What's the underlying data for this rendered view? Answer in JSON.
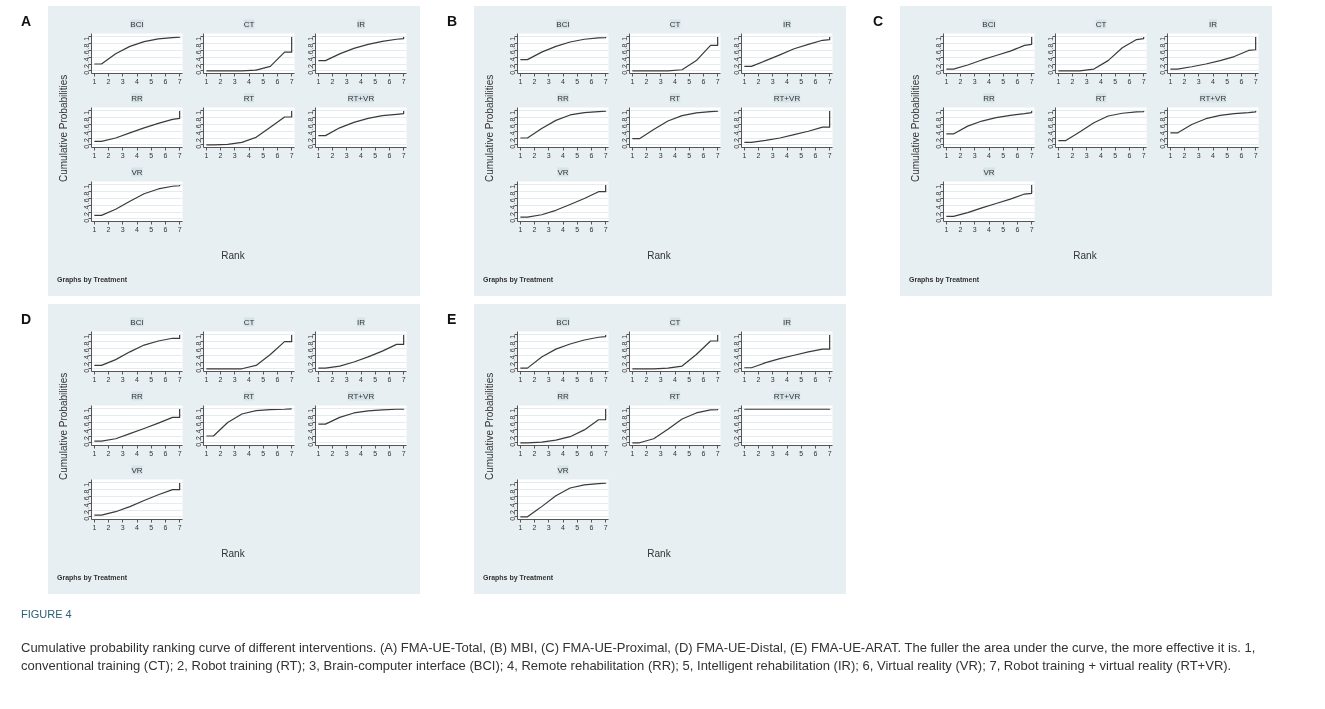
{
  "chart_data": [
    {
      "type": "other",
      "title": "A",
      "xlabel": "Rank",
      "ylabel": "Cumulative Probabilities",
      "annotations": [
        "Graphs by Treatment"
      ]
    },
    {
      "type": "line",
      "title": "BCI",
      "x": [
        1,
        1.5,
        2.5,
        3.5,
        4.5,
        5.5,
        6.5,
        7,
        7
      ],
      "values": [
        0.2,
        0.2,
        0.5,
        0.72,
        0.86,
        0.94,
        0.98,
        0.99,
        1
      ],
      "color": "#3a3a3a",
      "xlim": [
        0.8,
        7.2
      ],
      "xticks": [
        1,
        2,
        3,
        4,
        5,
        6,
        7
      ],
      "ylim": [
        -0.08,
        1.1
      ],
      "yticks": [
        {
          "value": 0,
          "label": "0"
        },
        {
          "value": 0.2,
          "label": ".2"
        },
        {
          "value": 0.4,
          "label": ".4"
        },
        {
          "value": 0.6,
          "label": ".6"
        },
        {
          "value": 0.8,
          "label": ".8"
        },
        {
          "value": 1,
          "label": "1"
        }
      ],
      "grid": "y"
    },
    {
      "type": "line",
      "title": "CT",
      "x": [
        1,
        1.5,
        2.5,
        3.5,
        4.5,
        5.5,
        6.5,
        7,
        7
      ],
      "values": [
        0,
        0,
        0,
        0,
        0.02,
        0.13,
        0.55,
        0.55,
        1
      ],
      "color": "#3a3a3a",
      "xlim": [
        0.8,
        7.2
      ],
      "xticks": [
        1,
        2,
        3,
        4,
        5,
        6,
        7
      ],
      "ylim": [
        -0.08,
        1.1
      ],
      "yticks": [
        {
          "value": 0,
          "label": "0"
        },
        {
          "value": 0.2,
          "label": ".2"
        },
        {
          "value": 0.4,
          "label": ".4"
        },
        {
          "value": 0.6,
          "label": ".6"
        },
        {
          "value": 0.8,
          "label": ".8"
        },
        {
          "value": 1,
          "label": "1"
        }
      ],
      "grid": "y"
    },
    {
      "type": "line",
      "title": "IR",
      "x": [
        1,
        1.5,
        2.5,
        3.5,
        4.5,
        5.5,
        6.5,
        7,
        7
      ],
      "values": [
        0.3,
        0.3,
        0.5,
        0.66,
        0.78,
        0.87,
        0.93,
        0.95,
        1
      ],
      "color": "#3a3a3a",
      "xlim": [
        0.8,
        7.2
      ],
      "xticks": [
        1,
        2,
        3,
        4,
        5,
        6,
        7
      ],
      "ylim": [
        -0.08,
        1.1
      ],
      "yticks": [
        {
          "value": 0,
          "label": "0"
        },
        {
          "value": 0.2,
          "label": ".2"
        },
        {
          "value": 0.4,
          "label": ".4"
        },
        {
          "value": 0.6,
          "label": ".6"
        },
        {
          "value": 0.8,
          "label": ".8"
        },
        {
          "value": 1,
          "label": "1"
        }
      ],
      "grid": "y"
    },
    {
      "type": "line",
      "title": "RR",
      "x": [
        1,
        1.5,
        2.5,
        3.5,
        4.5,
        5.5,
        6.5,
        7,
        7
      ],
      "values": [
        0.1,
        0.1,
        0.2,
        0.35,
        0.5,
        0.63,
        0.75,
        0.78,
        1
      ],
      "color": "#3a3a3a",
      "xlim": [
        0.8,
        7.2
      ],
      "xticks": [
        1,
        2,
        3,
        4,
        5,
        6,
        7
      ],
      "ylim": [
        -0.08,
        1.1
      ],
      "yticks": [
        {
          "value": 0,
          "label": "0"
        },
        {
          "value": 0.2,
          "label": ".2"
        },
        {
          "value": 0.4,
          "label": ".4"
        },
        {
          "value": 0.6,
          "label": ".6"
        },
        {
          "value": 0.8,
          "label": ".8"
        },
        {
          "value": 1,
          "label": "1"
        }
      ],
      "grid": "y"
    },
    {
      "type": "line",
      "title": "RT",
      "x": [
        1,
        1.5,
        2.5,
        3.5,
        4.5,
        5.5,
        6.5,
        7,
        7
      ],
      "values": [
        0,
        0,
        0.01,
        0.07,
        0.22,
        0.52,
        0.82,
        0.82,
        1
      ],
      "color": "#3a3a3a",
      "xlim": [
        0.8,
        7.2
      ],
      "xticks": [
        1,
        2,
        3,
        4,
        5,
        6,
        7
      ],
      "ylim": [
        -0.08,
        1.1
      ],
      "yticks": [
        {
          "value": 0,
          "label": "0"
        },
        {
          "value": 0.2,
          "label": ".2"
        },
        {
          "value": 0.4,
          "label": ".4"
        },
        {
          "value": 0.6,
          "label": ".6"
        },
        {
          "value": 0.8,
          "label": ".8"
        },
        {
          "value": 1,
          "label": "1"
        }
      ],
      "grid": "y"
    },
    {
      "type": "line",
      "title": "RT+VR",
      "x": [
        1,
        1.5,
        2.5,
        3.5,
        4.5,
        5.5,
        6.5,
        7,
        7
      ],
      "values": [
        0.27,
        0.27,
        0.5,
        0.66,
        0.78,
        0.86,
        0.9,
        0.92,
        1
      ],
      "color": "#3a3a3a",
      "xlim": [
        0.8,
        7.2
      ],
      "xticks": [
        1,
        2,
        3,
        4,
        5,
        6,
        7
      ],
      "ylim": [
        -0.08,
        1.1
      ],
      "yticks": [
        {
          "value": 0,
          "label": "0"
        },
        {
          "value": 0.2,
          "label": ".2"
        },
        {
          "value": 0.4,
          "label": ".4"
        },
        {
          "value": 0.6,
          "label": ".6"
        },
        {
          "value": 0.8,
          "label": ".8"
        },
        {
          "value": 1,
          "label": "1"
        }
      ],
      "grid": "y"
    },
    {
      "type": "line",
      "title": "VR",
      "x": [
        1,
        1.5,
        2.5,
        3.5,
        4.5,
        5.5,
        6.5,
        7,
        7
      ],
      "values": [
        0.1,
        0.1,
        0.28,
        0.52,
        0.74,
        0.88,
        0.96,
        0.98,
        1
      ],
      "color": "#3a3a3a",
      "xlim": [
        0.8,
        7.2
      ],
      "xticks": [
        1,
        2,
        3,
        4,
        5,
        6,
        7
      ],
      "ylim": [
        -0.08,
        1.1
      ],
      "yticks": [
        {
          "value": 0,
          "label": "0"
        },
        {
          "value": 0.2,
          "label": ".2"
        },
        {
          "value": 0.4,
          "label": ".4"
        },
        {
          "value": 0.6,
          "label": ".6"
        },
        {
          "value": 0.8,
          "label": ".8"
        },
        {
          "value": 1,
          "label": "1"
        }
      ],
      "grid": "y"
    },
    {
      "type": "other",
      "title": "B",
      "xlabel": "Rank",
      "ylabel": "Cumulative Probabilities",
      "annotations": [
        "Graphs by Treatment"
      ]
    },
    {
      "type": "line",
      "title": "BCI",
      "x": [
        1,
        1.5,
        2.5,
        3.5,
        4.5,
        5.5,
        6.5,
        7,
        7
      ],
      "values": [
        0.33,
        0.33,
        0.55,
        0.72,
        0.85,
        0.93,
        0.97,
        0.98,
        1
      ],
      "color": "#3a3a3a",
      "xlim": [
        0.8,
        7.2
      ],
      "xticks": [
        1,
        2,
        3,
        4,
        5,
        6,
        7
      ],
      "ylim": [
        -0.08,
        1.1
      ],
      "yticks": [
        {
          "value": 0,
          "label": "0"
        },
        {
          "value": 0.2,
          "label": ".2"
        },
        {
          "value": 0.4,
          "label": ".4"
        },
        {
          "value": 0.6,
          "label": ".6"
        },
        {
          "value": 0.8,
          "label": ".8"
        },
        {
          "value": 1,
          "label": "1"
        }
      ],
      "grid": "y"
    },
    {
      "type": "line",
      "title": "CT",
      "x": [
        1,
        1.5,
        2.5,
        3.5,
        4.5,
        5.5,
        6.5,
        7,
        7
      ],
      "values": [
        0,
        0,
        0,
        0,
        0.03,
        0.3,
        0.75,
        0.75,
        1
      ],
      "color": "#3a3a3a",
      "xlim": [
        0.8,
        7.2
      ],
      "xticks": [
        1,
        2,
        3,
        4,
        5,
        6,
        7
      ],
      "ylim": [
        -0.08,
        1.1
      ],
      "yticks": [
        {
          "value": 0,
          "label": "0"
        },
        {
          "value": 0.2,
          "label": ".2"
        },
        {
          "value": 0.4,
          "label": ".4"
        },
        {
          "value": 0.6,
          "label": ".6"
        },
        {
          "value": 0.8,
          "label": ".8"
        },
        {
          "value": 1,
          "label": "1"
        }
      ],
      "grid": "y"
    },
    {
      "type": "line",
      "title": "IR",
      "x": [
        1,
        1.5,
        2.5,
        3.5,
        4.5,
        5.5,
        6.5,
        7,
        7
      ],
      "values": [
        0.13,
        0.13,
        0.3,
        0.47,
        0.65,
        0.78,
        0.9,
        0.92,
        1
      ],
      "color": "#3a3a3a",
      "xlim": [
        0.8,
        7.2
      ],
      "xticks": [
        1,
        2,
        3,
        4,
        5,
        6,
        7
      ],
      "ylim": [
        -0.08,
        1.1
      ],
      "yticks": [
        {
          "value": 0,
          "label": "0"
        },
        {
          "value": 0.2,
          "label": ".2"
        },
        {
          "value": 0.4,
          "label": ".4"
        },
        {
          "value": 0.6,
          "label": ".6"
        },
        {
          "value": 0.8,
          "label": ".8"
        },
        {
          "value": 1,
          "label": "1"
        }
      ],
      "grid": "y"
    },
    {
      "type": "line",
      "title": "RR",
      "x": [
        1,
        1.5,
        2.5,
        3.5,
        4.5,
        5.5,
        6.5,
        7,
        7
      ],
      "values": [
        0.2,
        0.2,
        0.48,
        0.72,
        0.88,
        0.95,
        0.98,
        0.99,
        1
      ],
      "color": "#3a3a3a",
      "xlim": [
        0.8,
        7.2
      ],
      "xticks": [
        1,
        2,
        3,
        4,
        5,
        6,
        7
      ],
      "ylim": [
        -0.08,
        1.1
      ],
      "yticks": [
        {
          "value": 0,
          "label": "0"
        },
        {
          "value": 0.2,
          "label": ".2"
        },
        {
          "value": 0.4,
          "label": ".4"
        },
        {
          "value": 0.6,
          "label": ".6"
        },
        {
          "value": 0.8,
          "label": ".8"
        },
        {
          "value": 1,
          "label": "1"
        }
      ],
      "grid": "y"
    },
    {
      "type": "line",
      "title": "RT",
      "x": [
        1,
        1.5,
        2.5,
        3.5,
        4.5,
        5.5,
        6.5,
        7,
        7
      ],
      "values": [
        0.18,
        0.18,
        0.45,
        0.7,
        0.86,
        0.94,
        0.98,
        0.99,
        1
      ],
      "color": "#3a3a3a",
      "xlim": [
        0.8,
        7.2
      ],
      "xticks": [
        1,
        2,
        3,
        4,
        5,
        6,
        7
      ],
      "ylim": [
        -0.08,
        1.1
      ],
      "yticks": [
        {
          "value": 0,
          "label": "0"
        },
        {
          "value": 0.2,
          "label": ".2"
        },
        {
          "value": 0.4,
          "label": ".4"
        },
        {
          "value": 0.6,
          "label": ".6"
        },
        {
          "value": 0.8,
          "label": ".8"
        },
        {
          "value": 1,
          "label": "1"
        }
      ],
      "grid": "y"
    },
    {
      "type": "line",
      "title": "RT+VR",
      "x": [
        1,
        1.5,
        2.5,
        3.5,
        4.5,
        5.5,
        6.5,
        7,
        7
      ],
      "values": [
        0.07,
        0.07,
        0.13,
        0.2,
        0.3,
        0.4,
        0.52,
        0.52,
        1
      ],
      "color": "#3a3a3a",
      "xlim": [
        0.8,
        7.2
      ],
      "xticks": [
        1,
        2,
        3,
        4,
        5,
        6,
        7
      ],
      "ylim": [
        -0.08,
        1.1
      ],
      "yticks": [
        {
          "value": 0,
          "label": "0"
        },
        {
          "value": 0.2,
          "label": ".2"
        },
        {
          "value": 0.4,
          "label": ".4"
        },
        {
          "value": 0.6,
          "label": ".6"
        },
        {
          "value": 0.8,
          "label": ".8"
        },
        {
          "value": 1,
          "label": "1"
        }
      ],
      "grid": "y"
    },
    {
      "type": "line",
      "title": "VR",
      "x": [
        1,
        1.5,
        2.5,
        3.5,
        4.5,
        5.5,
        6.5,
        7,
        7
      ],
      "values": [
        0.05,
        0.05,
        0.12,
        0.25,
        0.42,
        0.6,
        0.8,
        0.8,
        1
      ],
      "color": "#3a3a3a",
      "xlim": [
        0.8,
        7.2
      ],
      "xticks": [
        1,
        2,
        3,
        4,
        5,
        6,
        7
      ],
      "ylim": [
        -0.08,
        1.1
      ],
      "yticks": [
        {
          "value": 0,
          "label": "0"
        },
        {
          "value": 0.2,
          "label": ".2"
        },
        {
          "value": 0.4,
          "label": ".4"
        },
        {
          "value": 0.6,
          "label": ".6"
        },
        {
          "value": 0.8,
          "label": ".8"
        },
        {
          "value": 1,
          "label": "1"
        }
      ],
      "grid": "y"
    },
    {
      "type": "other",
      "title": "C",
      "xlabel": "Rank",
      "ylabel": "Cumulative Probabilities",
      "annotations": [
        "Graphs by Treatment"
      ]
    },
    {
      "type": "line",
      "title": "BCI",
      "x": [
        1,
        1.5,
        2.5,
        3.5,
        4.5,
        5.5,
        6.5,
        7,
        7
      ],
      "values": [
        0.05,
        0.05,
        0.17,
        0.32,
        0.45,
        0.58,
        0.75,
        0.78,
        1
      ],
      "color": "#3a3a3a",
      "xlim": [
        0.8,
        7.2
      ],
      "xticks": [
        1,
        2,
        3,
        4,
        5,
        6,
        7
      ],
      "ylim": [
        -0.08,
        1.1
      ],
      "yticks": [
        {
          "value": 0,
          "label": "0"
        },
        {
          "value": 0.2,
          "label": ".2"
        },
        {
          "value": 0.4,
          "label": ".4"
        },
        {
          "value": 0.6,
          "label": ".6"
        },
        {
          "value": 0.8,
          "label": ".8"
        },
        {
          "value": 1,
          "label": "1"
        }
      ],
      "grid": "y"
    },
    {
      "type": "line",
      "title": "CT",
      "x": [
        1,
        1.5,
        2.5,
        3.5,
        4.5,
        5.5,
        6.5,
        7,
        7
      ],
      "values": [
        0,
        0,
        0,
        0.05,
        0.3,
        0.68,
        0.92,
        0.95,
        1
      ],
      "color": "#3a3a3a",
      "xlim": [
        0.8,
        7.2
      ],
      "xticks": [
        1,
        2,
        3,
        4,
        5,
        6,
        7
      ],
      "ylim": [
        -0.08,
        1.1
      ],
      "yticks": [
        {
          "value": 0,
          "label": "0"
        },
        {
          "value": 0.2,
          "label": ".2"
        },
        {
          "value": 0.4,
          "label": ".4"
        },
        {
          "value": 0.6,
          "label": ".6"
        },
        {
          "value": 0.8,
          "label": ".8"
        },
        {
          "value": 1,
          "label": "1"
        }
      ],
      "grid": "y"
    },
    {
      "type": "line",
      "title": "IR",
      "x": [
        1,
        1.5,
        2.5,
        3.5,
        4.5,
        5.5,
        6.5,
        7,
        7
      ],
      "values": [
        0.05,
        0.05,
        0.12,
        0.2,
        0.3,
        0.42,
        0.6,
        0.62,
        1
      ],
      "color": "#3a3a3a",
      "xlim": [
        0.8,
        7.2
      ],
      "xticks": [
        1,
        2,
        3,
        4,
        5,
        6,
        7
      ],
      "ylim": [
        -0.08,
        1.1
      ],
      "yticks": [
        {
          "value": 0,
          "label": "0"
        },
        {
          "value": 0.2,
          "label": ".2"
        },
        {
          "value": 0.4,
          "label": ".4"
        },
        {
          "value": 0.6,
          "label": ".6"
        },
        {
          "value": 0.8,
          "label": ".8"
        },
        {
          "value": 1,
          "label": "1"
        }
      ],
      "grid": "y"
    },
    {
      "type": "line",
      "title": "RR",
      "x": [
        1,
        1.5,
        2.5,
        3.5,
        4.5,
        5.5,
        6.5,
        7,
        7
      ],
      "values": [
        0.32,
        0.32,
        0.55,
        0.7,
        0.8,
        0.87,
        0.92,
        0.95,
        1
      ],
      "color": "#3a3a3a",
      "xlim": [
        0.8,
        7.2
      ],
      "xticks": [
        1,
        2,
        3,
        4,
        5,
        6,
        7
      ],
      "ylim": [
        -0.08,
        1.1
      ],
      "yticks": [
        {
          "value": 0,
          "label": "0"
        },
        {
          "value": 0.2,
          "label": ".2"
        },
        {
          "value": 0.4,
          "label": ".4"
        },
        {
          "value": 0.6,
          "label": ".6"
        },
        {
          "value": 0.8,
          "label": ".8"
        },
        {
          "value": 1,
          "label": "1"
        }
      ],
      "grid": "y"
    },
    {
      "type": "line",
      "title": "RT",
      "x": [
        1,
        1.5,
        2.5,
        3.5,
        4.5,
        5.5,
        6.5,
        7,
        7
      ],
      "values": [
        0.12,
        0.12,
        0.38,
        0.65,
        0.85,
        0.93,
        0.97,
        0.98,
        1
      ],
      "color": "#3a3a3a",
      "xlim": [
        0.8,
        7.2
      ],
      "xticks": [
        1,
        2,
        3,
        4,
        5,
        6,
        7
      ],
      "ylim": [
        -0.08,
        1.1
      ],
      "yticks": [
        {
          "value": 0,
          "label": "0"
        },
        {
          "value": 0.2,
          "label": ".2"
        },
        {
          "value": 0.4,
          "label": ".4"
        },
        {
          "value": 0.6,
          "label": ".6"
        },
        {
          "value": 0.8,
          "label": ".8"
        },
        {
          "value": 1,
          "label": "1"
        }
      ],
      "grid": "y"
    },
    {
      "type": "line",
      "title": "RT+VR",
      "x": [
        1,
        1.5,
        2.5,
        3.5,
        4.5,
        5.5,
        6.5,
        7,
        7
      ],
      "values": [
        0.35,
        0.35,
        0.6,
        0.77,
        0.87,
        0.92,
        0.95,
        0.97,
        1
      ],
      "color": "#3a3a3a",
      "xlim": [
        0.8,
        7.2
      ],
      "xticks": [
        1,
        2,
        3,
        4,
        5,
        6,
        7
      ],
      "ylim": [
        -0.08,
        1.1
      ],
      "yticks": [
        {
          "value": 0,
          "label": "0"
        },
        {
          "value": 0.2,
          "label": ".2"
        },
        {
          "value": 0.4,
          "label": ".4"
        },
        {
          "value": 0.6,
          "label": ".6"
        },
        {
          "value": 0.8,
          "label": ".8"
        },
        {
          "value": 1,
          "label": "1"
        }
      ],
      "grid": "y"
    },
    {
      "type": "line",
      "title": "VR",
      "x": [
        1,
        1.5,
        2.5,
        3.5,
        4.5,
        5.5,
        6.5,
        7,
        7
      ],
      "values": [
        0.07,
        0.07,
        0.18,
        0.32,
        0.45,
        0.58,
        0.73,
        0.75,
        1
      ],
      "color": "#3a3a3a",
      "xlim": [
        0.8,
        7.2
      ],
      "xticks": [
        1,
        2,
        3,
        4,
        5,
        6,
        7
      ],
      "ylim": [
        -0.08,
        1.1
      ],
      "yticks": [
        {
          "value": 0,
          "label": "0"
        },
        {
          "value": 0.2,
          "label": ".2"
        },
        {
          "value": 0.4,
          "label": ".4"
        },
        {
          "value": 0.6,
          "label": ".6"
        },
        {
          "value": 0.8,
          "label": ".8"
        },
        {
          "value": 1,
          "label": "1"
        }
      ],
      "grid": "y"
    },
    {
      "type": "other",
      "title": "D",
      "xlabel": "Rank",
      "ylabel": "Cumulative Probabilities",
      "annotations": [
        "Graphs by Treatment"
      ]
    },
    {
      "type": "line",
      "title": "BCI",
      "x": [
        1,
        1.5,
        2.5,
        3.5,
        4.5,
        5.5,
        6.5,
        7,
        7
      ],
      "values": [
        0.1,
        0.1,
        0.27,
        0.5,
        0.7,
        0.82,
        0.9,
        0.9,
        1
      ],
      "color": "#3a3a3a",
      "xlim": [
        0.8,
        7.2
      ],
      "xticks": [
        1,
        2,
        3,
        4,
        5,
        6,
        7
      ],
      "ylim": [
        -0.08,
        1.1
      ],
      "yticks": [
        {
          "value": 0,
          "label": "0"
        },
        {
          "value": 0.2,
          "label": ".2"
        },
        {
          "value": 0.4,
          "label": ".4"
        },
        {
          "value": 0.6,
          "label": ".6"
        },
        {
          "value": 0.8,
          "label": ".8"
        },
        {
          "value": 1,
          "label": "1"
        }
      ],
      "grid": "y"
    },
    {
      "type": "line",
      "title": "CT",
      "x": [
        1,
        1.5,
        2.5,
        3.5,
        4.5,
        5.5,
        6.5,
        7,
        7
      ],
      "values": [
        0,
        0,
        0,
        0,
        0.1,
        0.42,
        0.8,
        0.8,
        1
      ],
      "color": "#3a3a3a",
      "xlim": [
        0.8,
        7.2
      ],
      "xticks": [
        1,
        2,
        3,
        4,
        5,
        6,
        7
      ],
      "ylim": [
        -0.08,
        1.1
      ],
      "yticks": [
        {
          "value": 0,
          "label": "0"
        },
        {
          "value": 0.2,
          "label": ".2"
        },
        {
          "value": 0.4,
          "label": ".4"
        },
        {
          "value": 0.6,
          "label": ".6"
        },
        {
          "value": 0.8,
          "label": ".8"
        },
        {
          "value": 1,
          "label": "1"
        }
      ],
      "grid": "y"
    },
    {
      "type": "line",
      "title": "IR",
      "x": [
        1,
        1.5,
        2.5,
        3.5,
        4.5,
        5.5,
        6.5,
        7,
        7
      ],
      "values": [
        0.02,
        0.02,
        0.08,
        0.2,
        0.35,
        0.52,
        0.72,
        0.72,
        1
      ],
      "color": "#3a3a3a",
      "xlim": [
        0.8,
        7.2
      ],
      "xticks": [
        1,
        2,
        3,
        4,
        5,
        6,
        7
      ],
      "ylim": [
        -0.08,
        1.1
      ],
      "yticks": [
        {
          "value": 0,
          "label": "0"
        },
        {
          "value": 0.2,
          "label": ".2"
        },
        {
          "value": 0.4,
          "label": ".4"
        },
        {
          "value": 0.6,
          "label": ".6"
        },
        {
          "value": 0.8,
          "label": ".8"
        },
        {
          "value": 1,
          "label": "1"
        }
      ],
      "grid": "y"
    },
    {
      "type": "line",
      "title": "RR",
      "x": [
        1,
        1.5,
        2.5,
        3.5,
        4.5,
        5.5,
        6.5,
        7,
        7
      ],
      "values": [
        0.05,
        0.05,
        0.12,
        0.27,
        0.42,
        0.58,
        0.75,
        0.75,
        1
      ],
      "color": "#3a3a3a",
      "xlim": [
        0.8,
        7.2
      ],
      "xticks": [
        1,
        2,
        3,
        4,
        5,
        6,
        7
      ],
      "ylim": [
        -0.08,
        1.1
      ],
      "yticks": [
        {
          "value": 0,
          "label": "0"
        },
        {
          "value": 0.2,
          "label": ".2"
        },
        {
          "value": 0.4,
          "label": ".4"
        },
        {
          "value": 0.6,
          "label": ".6"
        },
        {
          "value": 0.8,
          "label": ".8"
        },
        {
          "value": 1,
          "label": "1"
        }
      ],
      "grid": "y"
    },
    {
      "type": "line",
      "title": "RT",
      "x": [
        1,
        1.5,
        2.5,
        3.5,
        4.5,
        5.5,
        6.5,
        7,
        7
      ],
      "values": [
        0.2,
        0.2,
        0.6,
        0.85,
        0.95,
        0.98,
        0.99,
        1,
        1
      ],
      "color": "#3a3a3a",
      "xlim": [
        0.8,
        7.2
      ],
      "xticks": [
        1,
        2,
        3,
        4,
        5,
        6,
        7
      ],
      "ylim": [
        -0.08,
        1.1
      ],
      "yticks": [
        {
          "value": 0,
          "label": "0"
        },
        {
          "value": 0.2,
          "label": ".2"
        },
        {
          "value": 0.4,
          "label": ".4"
        },
        {
          "value": 0.6,
          "label": ".6"
        },
        {
          "value": 0.8,
          "label": ".8"
        },
        {
          "value": 1,
          "label": "1"
        }
      ],
      "grid": "y"
    },
    {
      "type": "line",
      "title": "RT+VR",
      "x": [
        1,
        1.5,
        2.5,
        3.5,
        4.5,
        5.5,
        6.5,
        7,
        7
      ],
      "values": [
        0.55,
        0.55,
        0.75,
        0.88,
        0.94,
        0.97,
        0.99,
        0.99,
        1
      ],
      "color": "#3a3a3a",
      "xlim": [
        0.8,
        7.2
      ],
      "xticks": [
        1,
        2,
        3,
        4,
        5,
        6,
        7
      ],
      "ylim": [
        -0.08,
        1.1
      ],
      "yticks": [
        {
          "value": 0,
          "label": "0"
        },
        {
          "value": 0.2,
          "label": ".2"
        },
        {
          "value": 0.4,
          "label": ".4"
        },
        {
          "value": 0.6,
          "label": ".6"
        },
        {
          "value": 0.8,
          "label": ".8"
        },
        {
          "value": 1,
          "label": "1"
        }
      ],
      "grid": "y"
    },
    {
      "type": "line",
      "title": "VR",
      "x": [
        1,
        1.5,
        2.5,
        3.5,
        4.5,
        5.5,
        6.5,
        7,
        7
      ],
      "values": [
        0.05,
        0.05,
        0.15,
        0.3,
        0.48,
        0.65,
        0.8,
        0.8,
        1
      ],
      "color": "#3a3a3a",
      "xlim": [
        0.8,
        7.2
      ],
      "xticks": [
        1,
        2,
        3,
        4,
        5,
        6,
        7
      ],
      "ylim": [
        -0.08,
        1.1
      ],
      "yticks": [
        {
          "value": 0,
          "label": "0"
        },
        {
          "value": 0.2,
          "label": ".2"
        },
        {
          "value": 0.4,
          "label": ".4"
        },
        {
          "value": 0.6,
          "label": ".6"
        },
        {
          "value": 0.8,
          "label": ".8"
        },
        {
          "value": 1,
          "label": "1"
        }
      ],
      "grid": "y"
    },
    {
      "type": "other",
      "title": "E",
      "xlabel": "Rank",
      "ylabel": "Cumulative Probabilities",
      "subtitle": "FIGURE 4",
      "annotations": [
        "Graphs by Treatment",
        "Cumulative probability ranking curve of different interventions. (A) FMA-UE-Total, (B) MBI, (C) FMA-UE-Proximal, (D) FMA-UE-Distal, (E) FMA-UE-ARAT. The fuller the area under the curve, the more effective it is. 1, conventional training (CT); 2, Robot training (RT); 3, Brain-computer interface (BCI); 4, Remote rehabilitation (RR); 5, Intelligent rehabilitation (IR); 6, Virtual reality (VR); 7, Robot training + virtual reality (RT+VR)."
      ]
    },
    {
      "type": "line",
      "title": "BCI",
      "x": [
        1,
        1.5,
        2.5,
        3.5,
        4.5,
        5.5,
        6.5,
        7,
        7
      ],
      "values": [
        0.02,
        0.02,
        0.35,
        0.58,
        0.73,
        0.85,
        0.93,
        0.95,
        1
      ],
      "color": "#3a3a3a",
      "xlim": [
        0.8,
        7.2
      ],
      "xticks": [
        1,
        2,
        3,
        4,
        5,
        6,
        7
      ],
      "ylim": [
        -0.08,
        1.1
      ],
      "yticks": [
        {
          "value": 0,
          "label": "0"
        },
        {
          "value": 0.2,
          "label": ".2"
        },
        {
          "value": 0.4,
          "label": ".4"
        },
        {
          "value": 0.6,
          "label": ".6"
        },
        {
          "value": 0.8,
          "label": ".8"
        },
        {
          "value": 1,
          "label": "1"
        }
      ],
      "grid": "y"
    },
    {
      "type": "line",
      "title": "CT",
      "x": [
        1,
        1.5,
        2.5,
        3.5,
        4.5,
        5.5,
        6.5,
        7,
        7
      ],
      "values": [
        0,
        0,
        0,
        0.02,
        0.08,
        0.42,
        0.82,
        0.82,
        1
      ],
      "color": "#3a3a3a",
      "xlim": [
        0.8,
        7.2
      ],
      "xticks": [
        1,
        2,
        3,
        4,
        5,
        6,
        7
      ],
      "ylim": [
        -0.08,
        1.1
      ],
      "yticks": [
        {
          "value": 0,
          "label": "0"
        },
        {
          "value": 0.2,
          "label": ".2"
        },
        {
          "value": 0.4,
          "label": ".4"
        },
        {
          "value": 0.6,
          "label": ".6"
        },
        {
          "value": 0.8,
          "label": ".8"
        },
        {
          "value": 1,
          "label": "1"
        }
      ],
      "grid": "y"
    },
    {
      "type": "line",
      "title": "IR",
      "x": [
        1,
        1.5,
        2.5,
        3.5,
        4.5,
        5.5,
        6.5,
        7,
        7
      ],
      "values": [
        0.03,
        0.03,
        0.18,
        0.3,
        0.4,
        0.5,
        0.58,
        0.58,
        1
      ],
      "color": "#3a3a3a",
      "xlim": [
        0.8,
        7.2
      ],
      "xticks": [
        1,
        2,
        3,
        4,
        5,
        6,
        7
      ],
      "ylim": [
        -0.08,
        1.1
      ],
      "yticks": [
        {
          "value": 0,
          "label": "0"
        },
        {
          "value": 0.2,
          "label": ".2"
        },
        {
          "value": 0.4,
          "label": ".4"
        },
        {
          "value": 0.6,
          "label": ".6"
        },
        {
          "value": 0.8,
          "label": ".8"
        },
        {
          "value": 1,
          "label": "1"
        }
      ],
      "grid": "y"
    },
    {
      "type": "line",
      "title": "RR",
      "x": [
        1,
        1.5,
        2.5,
        3.5,
        4.5,
        5.5,
        6.5,
        7,
        7
      ],
      "values": [
        0,
        0,
        0.02,
        0.08,
        0.18,
        0.38,
        0.68,
        0.68,
        1
      ],
      "color": "#3a3a3a",
      "xlim": [
        0.8,
        7.2
      ],
      "xticks": [
        1,
        2,
        3,
        4,
        5,
        6,
        7
      ],
      "ylim": [
        -0.08,
        1.1
      ],
      "yticks": [
        {
          "value": 0,
          "label": "0"
        },
        {
          "value": 0.2,
          "label": ".2"
        },
        {
          "value": 0.4,
          "label": ".4"
        },
        {
          "value": 0.6,
          "label": ".6"
        },
        {
          "value": 0.8,
          "label": ".8"
        },
        {
          "value": 1,
          "label": "1"
        }
      ],
      "grid": "y"
    },
    {
      "type": "line",
      "title": "RT",
      "x": [
        1,
        1.5,
        2.5,
        3.5,
        4.5,
        5.5,
        6.5,
        7,
        7
      ],
      "values": [
        0,
        0,
        0.12,
        0.4,
        0.7,
        0.88,
        0.97,
        0.98,
        1
      ],
      "color": "#3a3a3a",
      "xlim": [
        0.8,
        7.2
      ],
      "xticks": [
        1,
        2,
        3,
        4,
        5,
        6,
        7
      ],
      "ylim": [
        -0.08,
        1.1
      ],
      "yticks": [
        {
          "value": 0,
          "label": "0"
        },
        {
          "value": 0.2,
          "label": ".2"
        },
        {
          "value": 0.4,
          "label": ".4"
        },
        {
          "value": 0.6,
          "label": ".6"
        },
        {
          "value": 0.8,
          "label": ".8"
        },
        {
          "value": 1,
          "label": "1"
        }
      ],
      "grid": "y"
    },
    {
      "type": "line",
      "title": "RT+VR",
      "x": [
        1,
        1.5,
        2.5,
        3.5,
        4.5,
        5.5,
        6.5,
        7,
        7
      ],
      "values": [
        0.99,
        0.99,
        0.99,
        0.99,
        0.99,
        0.99,
        0.99,
        0.99,
        1
      ],
      "color": "#3a3a3a",
      "xlim": [
        0.8,
        7.2
      ],
      "xticks": [
        1,
        2,
        3,
        4,
        5,
        6,
        7
      ],
      "ylim": [
        -0.08,
        1.1
      ],
      "yticks": [
        {
          "value": 0,
          "label": "0"
        },
        {
          "value": 0.2,
          "label": ".2"
        },
        {
          "value": 0.4,
          "label": ".4"
        },
        {
          "value": 0.6,
          "label": ".6"
        },
        {
          "value": 0.8,
          "label": ".8"
        },
        {
          "value": 1,
          "label": "1"
        }
      ],
      "grid": "y"
    },
    {
      "type": "line",
      "title": "VR",
      "x": [
        1,
        1.5,
        2.5,
        3.5,
        4.5,
        5.5,
        6.5,
        7,
        7
      ],
      "values": [
        0,
        0,
        0.3,
        0.62,
        0.85,
        0.94,
        0.98,
        0.99,
        1
      ],
      "color": "#3a3a3a",
      "xlim": [
        0.8,
        7.2
      ],
      "xticks": [
        1,
        2,
        3,
        4,
        5,
        6,
        7
      ],
      "ylim": [
        -0.08,
        1.1
      ],
      "yticks": [
        {
          "value": 0,
          "label": "0"
        },
        {
          "value": 0.2,
          "label": ".2"
        },
        {
          "value": 0.4,
          "label": ".4"
        },
        {
          "value": 0.6,
          "label": ".6"
        },
        {
          "value": 0.8,
          "label": ".8"
        },
        {
          "value": 1,
          "label": "1"
        }
      ],
      "grid": "y"
    }
  ]
}
